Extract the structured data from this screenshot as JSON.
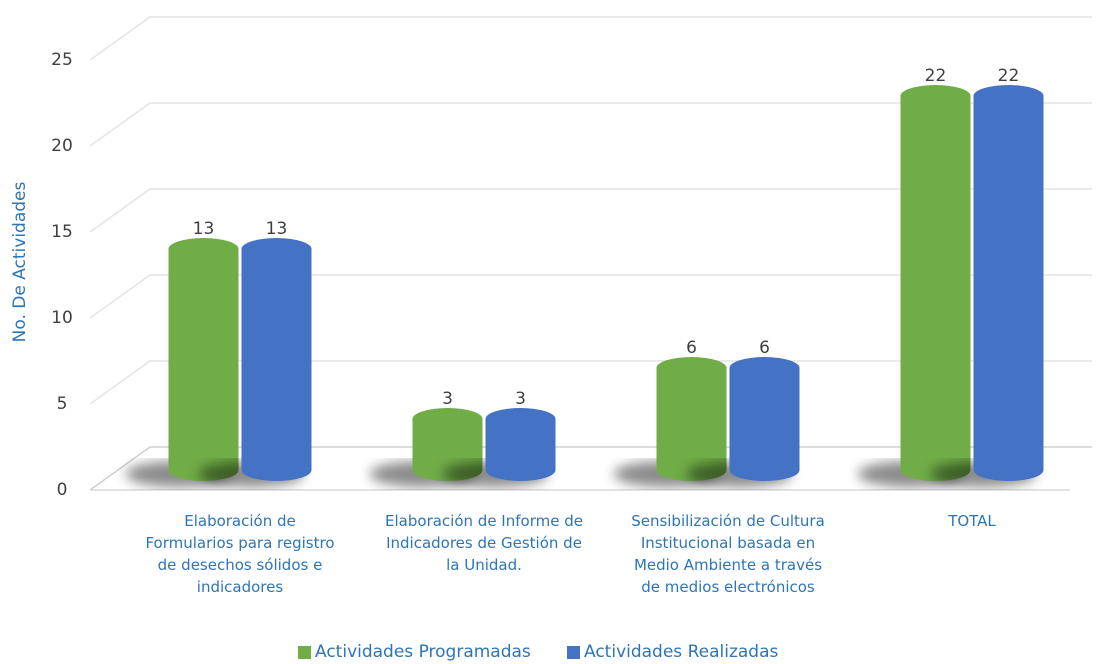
{
  "chart_data": {
    "type": "bar3d",
    "y_label": "No. De Actividades",
    "categories": [
      "Elaboración de Formularios para registro de desechos sólidos e indicadores",
      "Elaboración de Informe de Indicadores de Gestión de la Unidad.",
      "Sensibilización de Cultura Institucional basada en Medio Ambiente a través de medios electrónicos",
      "TOTAL"
    ],
    "series": [
      {
        "name": "Actividades Programadas",
        "color": "#70ad47",
        "values": [
          13,
          3,
          6,
          22
        ]
      },
      {
        "name": "Actividades Realizadas",
        "color": "#4472c4",
        "values": [
          13,
          3,
          6,
          22
        ]
      }
    ],
    "ylim": [
      0,
      25
    ],
    "yticks": [
      0,
      5,
      10,
      15,
      20,
      25
    ],
    "grid": true,
    "legend": "bottom"
  }
}
